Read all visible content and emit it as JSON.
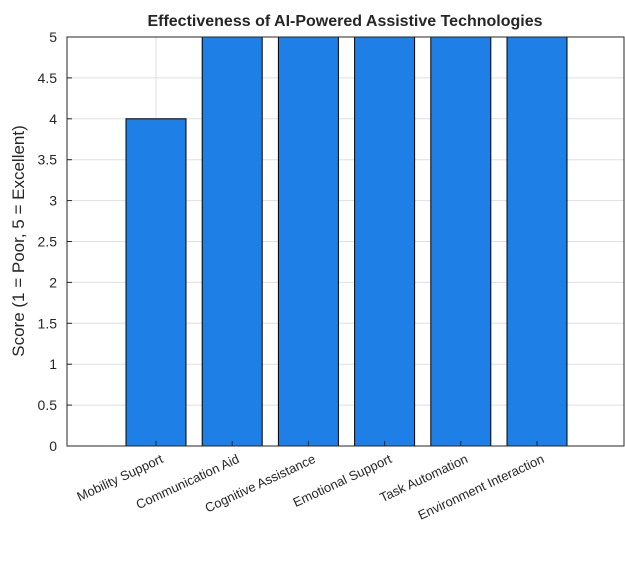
{
  "chart_data": {
    "type": "bar",
    "title": "Effectiveness of AI-Powered Assistive Technologies",
    "xlabel": "",
    "ylabel": "Score (1 = Poor, 5 = Excellent)",
    "categories": [
      "Mobility Support",
      "Communication Aid",
      "Cognitive Assistance",
      "Emotional Support",
      "Task Automation",
      "Environment Interaction"
    ],
    "values": [
      4,
      5,
      5,
      5,
      5,
      5
    ],
    "ylim": [
      0,
      5
    ],
    "yticks": [
      "0",
      "0.5",
      "1",
      "1.5",
      "2",
      "2.5",
      "3",
      "3.5",
      "4",
      "4.5",
      "5"
    ],
    "grid": true,
    "bar_color": "#1e7fe6"
  }
}
